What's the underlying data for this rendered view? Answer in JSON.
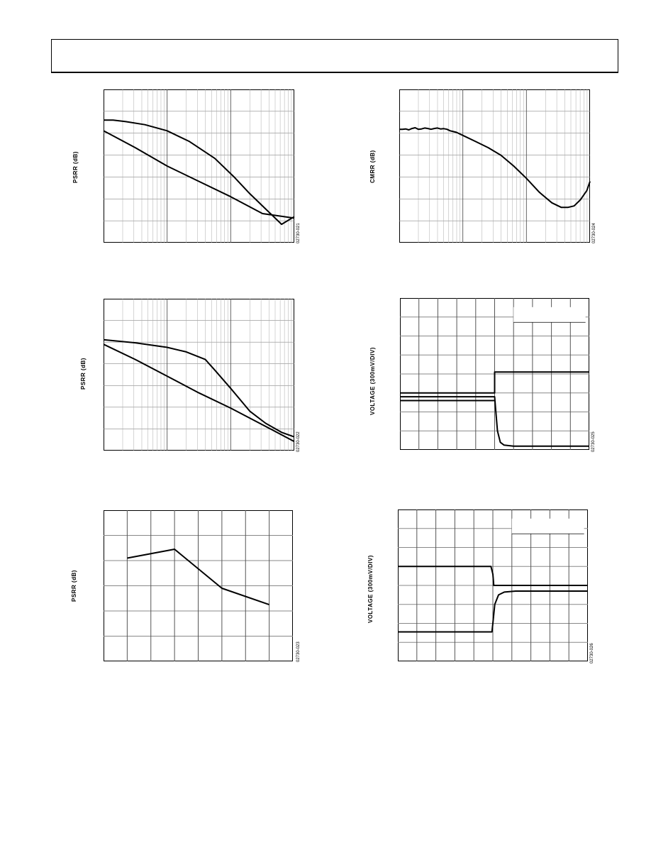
{
  "chart_data": [
    {
      "id": "c1",
      "type": "line",
      "title": "",
      "xlabel": "",
      "ylabel": "PSRR (dB)",
      "figure_code": "02730-021",
      "x_scale": "log",
      "decades": 3,
      "series": [
        {
          "x": [
            0,
            0.15,
            0.35,
            0.65,
            1.0,
            1.35,
            1.75,
            2.05,
            2.3,
            2.55,
            2.8,
            3.0
          ],
          "y": [
            0.8,
            0.8,
            0.79,
            0.77,
            0.73,
            0.66,
            0.55,
            0.43,
            0.32,
            0.22,
            0.12,
            0.17
          ]
        },
        {
          "x": [
            0,
            0.5,
            1.0,
            1.5,
            2.0,
            2.5,
            3.0
          ],
          "y": [
            0.73,
            0.62,
            0.5,
            0.4,
            0.3,
            0.19,
            0.16
          ]
        }
      ]
    },
    {
      "id": "c2",
      "type": "line",
      "title": "",
      "xlabel": "",
      "ylabel": "CMRR (dB)",
      "figure_code": "02730-024",
      "x_scale": "log",
      "decades": 3,
      "series": [
        {
          "x": [
            0,
            0.05,
            0.1,
            0.15,
            0.2,
            0.25,
            0.3,
            0.35,
            0.4,
            0.45,
            0.5,
            0.55,
            0.6,
            0.65,
            0.7,
            0.75,
            0.8,
            0.85,
            0.9,
            1.0,
            1.2,
            1.4,
            1.6,
            1.8,
            2.0,
            2.2,
            2.4,
            2.55,
            2.65,
            2.75,
            2.85,
            2.95,
            3.0
          ],
          "y": [
            0.74,
            0.74,
            0.742,
            0.736,
            0.745,
            0.75,
            0.74,
            0.742,
            0.748,
            0.745,
            0.74,
            0.745,
            0.748,
            0.742,
            0.744,
            0.74,
            0.73,
            0.725,
            0.72,
            0.7,
            0.66,
            0.62,
            0.57,
            0.5,
            0.42,
            0.33,
            0.26,
            0.23,
            0.23,
            0.24,
            0.28,
            0.34,
            0.4
          ]
        }
      ]
    },
    {
      "id": "c3",
      "type": "line",
      "title": "",
      "xlabel": "",
      "ylabel": "PSRR (dB)",
      "figure_code": "02730-022",
      "x_scale": "log",
      "decades": 3,
      "series": [
        {
          "x": [
            0,
            0.5,
            1.0,
            1.3,
            1.6,
            1.75,
            2.0,
            2.3,
            2.55,
            2.8,
            3.0
          ],
          "y": [
            0.73,
            0.71,
            0.68,
            0.65,
            0.6,
            0.53,
            0.41,
            0.26,
            0.18,
            0.12,
            0.09
          ]
        },
        {
          "x": [
            0,
            0.5,
            1.0,
            1.5,
            2.0,
            2.5,
            3.0
          ],
          "y": [
            0.7,
            0.6,
            0.49,
            0.38,
            0.28,
            0.17,
            0.06
          ]
        }
      ]
    },
    {
      "id": "c4",
      "type": "line",
      "title": "",
      "xlabel": "",
      "ylabel": "VOLTAGE (300mV/DIV)",
      "figure_code": "02730-025",
      "x_scale": "linear",
      "x_divisions": 10,
      "y_divisions": 8,
      "legend_box": true,
      "series": [
        {
          "x": [
            0,
            5,
            5,
            10
          ],
          "y": [
            3.0,
            3.0,
            4.1,
            4.1
          ]
        },
        {
          "x": [
            0,
            5,
            5.05,
            5.15,
            5.3,
            5.5,
            6,
            10
          ],
          "y": [
            2.8,
            2.8,
            2.2,
            1.0,
            0.4,
            0.25,
            0.2,
            0.2
          ]
        },
        {
          "x": [
            0,
            5
          ],
          "y": [
            2.6,
            2.6
          ]
        }
      ]
    },
    {
      "id": "c5",
      "type": "line",
      "title": "",
      "xlabel": "",
      "ylabel": "PSRR (dB)",
      "figure_code": "02730-023",
      "x_scale": "linear",
      "x_divisions": 8,
      "y_divisions": 6,
      "series": [
        {
          "x": [
            1,
            3,
            5,
            7
          ],
          "y": [
            4.1,
            4.45,
            2.9,
            2.25
          ]
        }
      ]
    },
    {
      "id": "c6",
      "type": "line",
      "title": "",
      "xlabel": "",
      "ylabel": "VOLTAGE (300mV/DIV)",
      "figure_code": "02730-026",
      "x_scale": "linear",
      "x_divisions": 10,
      "y_divisions": 8,
      "legend_box": true,
      "series": [
        {
          "x": [
            0,
            4.9,
            5.0,
            5.05,
            10
          ],
          "y": [
            5.0,
            5.0,
            4.6,
            4.0,
            4.0
          ]
        },
        {
          "x": [
            0,
            4.95,
            5.0,
            5.1,
            5.3,
            5.6,
            6.2,
            10
          ],
          "y": [
            1.55,
            1.55,
            2.0,
            3.0,
            3.5,
            3.65,
            3.7,
            3.7
          ]
        }
      ]
    }
  ]
}
